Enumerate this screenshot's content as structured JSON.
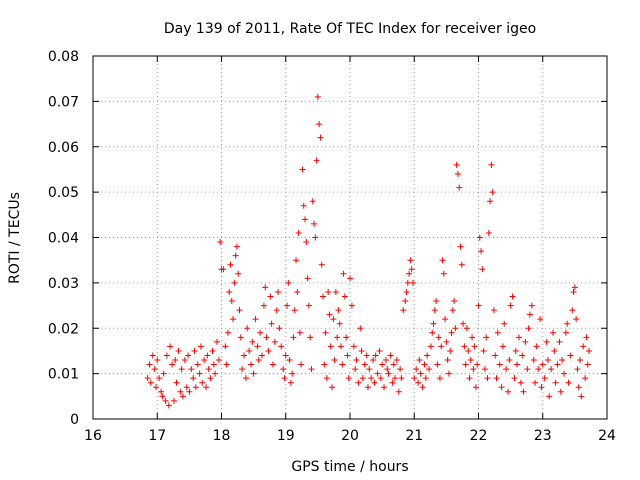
{
  "chart_data": {
    "type": "scatter",
    "title": "Day 139 of 2011, Rate Of TEC Index for receiver igeo",
    "xlabel": "GPS time / hours",
    "ylabel": "ROTI / TECUs",
    "xlim": [
      16,
      24
    ],
    "ylim": [
      0,
      0.08
    ],
    "x_ticks": [
      "16",
      "17",
      "18",
      "19",
      "20",
      "21",
      "22",
      "23",
      "24"
    ],
    "y_ticks": [
      "0",
      "0.01",
      "0.02",
      "0.03",
      "0.04",
      "0.05",
      "0.06",
      "0.07",
      "0.08"
    ],
    "grid": true,
    "marker": "+",
    "series_color": "#ff0000",
    "series": [
      {
        "name": "ROTI",
        "points": [
          [
            16.85,
            0.009
          ],
          [
            16.88,
            0.012
          ],
          [
            16.9,
            0.008
          ],
          [
            16.93,
            0.014
          ],
          [
            16.96,
            0.011
          ],
          [
            16.98,
            0.007
          ],
          [
            17.0,
            0.013
          ],
          [
            17.03,
            0.009
          ],
          [
            17.06,
            0.006
          ],
          [
            17.08,
            0.005
          ],
          [
            17.1,
            0.01
          ],
          [
            17.13,
            0.004
          ],
          [
            17.15,
            0.014
          ],
          [
            17.18,
            0.003
          ],
          [
            17.2,
            0.016
          ],
          [
            17.23,
            0.012
          ],
          [
            17.26,
            0.004
          ],
          [
            17.28,
            0.013
          ],
          [
            17.3,
            0.008
          ],
          [
            17.33,
            0.015
          ],
          [
            17.36,
            0.006
          ],
          [
            17.38,
            0.011
          ],
          [
            17.4,
            0.005
          ],
          [
            17.43,
            0.013
          ],
          [
            17.46,
            0.007
          ],
          [
            17.48,
            0.014
          ],
          [
            17.5,
            0.006
          ],
          [
            17.53,
            0.011
          ],
          [
            17.56,
            0.009
          ],
          [
            17.58,
            0.015
          ],
          [
            17.6,
            0.007
          ],
          [
            17.63,
            0.012
          ],
          [
            17.66,
            0.01
          ],
          [
            17.68,
            0.016
          ],
          [
            17.7,
            0.008
          ],
          [
            17.73,
            0.013
          ],
          [
            17.76,
            0.007
          ],
          [
            17.78,
            0.014
          ],
          [
            17.8,
            0.011
          ],
          [
            17.83,
            0.009
          ],
          [
            17.86,
            0.015
          ],
          [
            17.88,
            0.012
          ],
          [
            17.9,
            0.01
          ],
          [
            17.93,
            0.017
          ],
          [
            17.96,
            0.013
          ],
          [
            17.98,
            0.039
          ],
          [
            18.0,
            0.033
          ],
          [
            18.03,
            0.033
          ],
          [
            18.06,
            0.016
          ],
          [
            18.08,
            0.012
          ],
          [
            18.1,
            0.019
          ],
          [
            18.12,
            0.028
          ],
          [
            18.14,
            0.034
          ],
          [
            18.16,
            0.026
          ],
          [
            18.18,
            0.022
          ],
          [
            18.2,
            0.03
          ],
          [
            18.22,
            0.036
          ],
          [
            18.24,
            0.038
          ],
          [
            18.26,
            0.032
          ],
          [
            18.28,
            0.024
          ],
          [
            18.3,
            0.018
          ],
          [
            18.32,
            0.011
          ],
          [
            18.35,
            0.014
          ],
          [
            18.38,
            0.009
          ],
          [
            18.4,
            0.02
          ],
          [
            18.43,
            0.015
          ],
          [
            18.46,
            0.012
          ],
          [
            18.48,
            0.017
          ],
          [
            18.5,
            0.01
          ],
          [
            18.53,
            0.022
          ],
          [
            18.56,
            0.016
          ],
          [
            18.58,
            0.013
          ],
          [
            18.6,
            0.019
          ],
          [
            18.63,
            0.014
          ],
          [
            18.66,
            0.025
          ],
          [
            18.68,
            0.029
          ],
          [
            18.7,
            0.018
          ],
          [
            18.73,
            0.015
          ],
          [
            18.76,
            0.027
          ],
          [
            18.78,
            0.021
          ],
          [
            18.8,
            0.012
          ],
          [
            18.83,
            0.017
          ],
          [
            18.86,
            0.024
          ],
          [
            18.88,
            0.028
          ],
          [
            18.9,
            0.02
          ],
          [
            18.93,
            0.016
          ],
          [
            18.96,
            0.011
          ],
          [
            18.98,
            0.009
          ],
          [
            19.0,
            0.014
          ],
          [
            19.02,
            0.025
          ],
          [
            19.04,
            0.03
          ],
          [
            19.06,
            0.013
          ],
          [
            19.08,
            0.008
          ],
          [
            19.1,
            0.01
          ],
          [
            19.12,
            0.018
          ],
          [
            19.14,
            0.024
          ],
          [
            19.16,
            0.035
          ],
          [
            19.18,
            0.028
          ],
          [
            19.2,
            0.041
          ],
          [
            19.22,
            0.019
          ],
          [
            19.24,
            0.012
          ],
          [
            19.26,
            0.055
          ],
          [
            19.28,
            0.047
          ],
          [
            19.3,
            0.044
          ],
          [
            19.32,
            0.039
          ],
          [
            19.34,
            0.031
          ],
          [
            19.36,
            0.025
          ],
          [
            19.38,
            0.018
          ],
          [
            19.4,
            0.011
          ],
          [
            19.42,
            0.048
          ],
          [
            19.44,
            0.043
          ],
          [
            19.46,
            0.04
          ],
          [
            19.48,
            0.057
          ],
          [
            19.5,
            0.071
          ],
          [
            19.52,
            0.065
          ],
          [
            19.54,
            0.062
          ],
          [
            19.56,
            0.034
          ],
          [
            19.58,
            0.027
          ],
          [
            19.6,
            0.012
          ],
          [
            19.62,
            0.019
          ],
          [
            19.64,
            0.009
          ],
          [
            19.66,
            0.028
          ],
          [
            19.68,
            0.023
          ],
          [
            19.7,
            0.016
          ],
          [
            19.72,
            0.007
          ],
          [
            19.74,
            0.022
          ],
          [
            19.76,
            0.013
          ],
          [
            19.78,
            0.028
          ],
          [
            19.8,
            0.018
          ],
          [
            19.82,
            0.024
          ],
          [
            19.84,
            0.021
          ],
          [
            19.86,
            0.016
          ],
          [
            19.88,
            0.012
          ],
          [
            19.9,
            0.032
          ],
          [
            19.92,
            0.027
          ],
          [
            19.94,
            0.018
          ],
          [
            19.96,
            0.014
          ],
          [
            19.98,
            0.009
          ],
          [
            20.0,
            0.031
          ],
          [
            20.03,
            0.025
          ],
          [
            20.06,
            0.016
          ],
          [
            20.08,
            0.011
          ],
          [
            20.1,
            0.013
          ],
          [
            20.13,
            0.008
          ],
          [
            20.16,
            0.02
          ],
          [
            20.18,
            0.015
          ],
          [
            20.2,
            0.009
          ],
          [
            20.23,
            0.012
          ],
          [
            20.26,
            0.014
          ],
          [
            20.28,
            0.007
          ],
          [
            20.3,
            0.011
          ],
          [
            20.33,
            0.009
          ],
          [
            20.36,
            0.013
          ],
          [
            20.38,
            0.008
          ],
          [
            20.4,
            0.014
          ],
          [
            20.43,
            0.01
          ],
          [
            20.46,
            0.015
          ],
          [
            20.48,
            0.009
          ],
          [
            20.5,
            0.012
          ],
          [
            20.53,
            0.007
          ],
          [
            20.56,
            0.013
          ],
          [
            20.58,
            0.011
          ],
          [
            20.6,
            0.01
          ],
          [
            20.63,
            0.014
          ],
          [
            20.66,
            0.008
          ],
          [
            20.68,
            0.012
          ],
          [
            20.7,
            0.009
          ],
          [
            20.73,
            0.013
          ],
          [
            20.76,
            0.006
          ],
          [
            20.78,
            0.011
          ],
          [
            20.8,
            0.009
          ],
          [
            20.83,
            0.024
          ],
          [
            20.86,
            0.026
          ],
          [
            20.88,
            0.028
          ],
          [
            20.9,
            0.03
          ],
          [
            20.92,
            0.032
          ],
          [
            20.94,
            0.035
          ],
          [
            20.96,
            0.033
          ],
          [
            20.98,
            0.03
          ],
          [
            21.0,
            0.009
          ],
          [
            21.03,
            0.011
          ],
          [
            21.06,
            0.008
          ],
          [
            21.08,
            0.013
          ],
          [
            21.1,
            0.01
          ],
          [
            21.13,
            0.007
          ],
          [
            21.16,
            0.012
          ],
          [
            21.18,
            0.009
          ],
          [
            21.2,
            0.014
          ],
          [
            21.23,
            0.011
          ],
          [
            21.26,
            0.016
          ],
          [
            21.28,
            0.019
          ],
          [
            21.3,
            0.021
          ],
          [
            21.32,
            0.024
          ],
          [
            21.34,
            0.026
          ],
          [
            21.36,
            0.012
          ],
          [
            21.38,
            0.018
          ],
          [
            21.4,
            0.009
          ],
          [
            21.42,
            0.016
          ],
          [
            21.44,
            0.035
          ],
          [
            21.46,
            0.032
          ],
          [
            21.48,
            0.022
          ],
          [
            21.5,
            0.017
          ],
          [
            21.52,
            0.013
          ],
          [
            21.54,
            0.01
          ],
          [
            21.56,
            0.015
          ],
          [
            21.58,
            0.019
          ],
          [
            21.6,
            0.024
          ],
          [
            21.62,
            0.026
          ],
          [
            21.64,
            0.02
          ],
          [
            21.66,
            0.056
          ],
          [
            21.68,
            0.054
          ],
          [
            21.7,
            0.051
          ],
          [
            21.72,
            0.038
          ],
          [
            21.74,
            0.034
          ],
          [
            21.76,
            0.021
          ],
          [
            21.78,
            0.016
          ],
          [
            21.8,
            0.012
          ],
          [
            21.82,
            0.02
          ],
          [
            21.84,
            0.015
          ],
          [
            21.86,
            0.009
          ],
          [
            21.88,
            0.013
          ],
          [
            21.9,
            0.018
          ],
          [
            21.92,
            0.011
          ],
          [
            21.94,
            0.016
          ],
          [
            21.96,
            0.007
          ],
          [
            21.98,
            0.012
          ],
          [
            22.0,
            0.025
          ],
          [
            22.02,
            0.04
          ],
          [
            22.04,
            0.037
          ],
          [
            22.06,
            0.033
          ],
          [
            22.08,
            0.015
          ],
          [
            22.1,
            0.011
          ],
          [
            22.12,
            0.018
          ],
          [
            22.14,
            0.009
          ],
          [
            22.16,
            0.041
          ],
          [
            22.18,
            0.048
          ],
          [
            22.2,
            0.056
          ],
          [
            22.22,
            0.05
          ],
          [
            22.24,
            0.024
          ],
          [
            22.26,
            0.014
          ],
          [
            22.28,
            0.009
          ],
          [
            22.3,
            0.019
          ],
          [
            22.33,
            0.012
          ],
          [
            22.36,
            0.007
          ],
          [
            22.38,
            0.016
          ],
          [
            22.4,
            0.021
          ],
          [
            22.43,
            0.011
          ],
          [
            22.46,
            0.006
          ],
          [
            22.48,
            0.013
          ],
          [
            22.5,
            0.025
          ],
          [
            22.53,
            0.027
          ],
          [
            22.56,
            0.009
          ],
          [
            22.58,
            0.015
          ],
          [
            22.6,
            0.012
          ],
          [
            22.63,
            0.018
          ],
          [
            22.66,
            0.008
          ],
          [
            22.68,
            0.014
          ],
          [
            22.7,
            0.006
          ],
          [
            22.73,
            0.017
          ],
          [
            22.76,
            0.011
          ],
          [
            22.78,
            0.02
          ],
          [
            22.8,
            0.023
          ],
          [
            22.83,
            0.025
          ],
          [
            22.86,
            0.013
          ],
          [
            22.88,
            0.008
          ],
          [
            22.9,
            0.016
          ],
          [
            22.93,
            0.011
          ],
          [
            22.96,
            0.022
          ],
          [
            22.98,
            0.007
          ],
          [
            23.0,
            0.012
          ],
          [
            23.03,
            0.009
          ],
          [
            23.06,
            0.017
          ],
          [
            23.08,
            0.013
          ],
          [
            23.1,
            0.005
          ],
          [
            23.13,
            0.011
          ],
          [
            23.16,
            0.019
          ],
          [
            23.18,
            0.015
          ],
          [
            23.2,
            0.008
          ],
          [
            23.23,
            0.012
          ],
          [
            23.26,
            0.017
          ],
          [
            23.28,
            0.006
          ],
          [
            23.3,
            0.013
          ],
          [
            23.33,
            0.01
          ],
          [
            23.36,
            0.019
          ],
          [
            23.38,
            0.021
          ],
          [
            23.4,
            0.008
          ],
          [
            23.43,
            0.014
          ],
          [
            23.46,
            0.024
          ],
          [
            23.48,
            0.028
          ],
          [
            23.5,
            0.029
          ],
          [
            23.52,
            0.022
          ],
          [
            23.54,
            0.011
          ],
          [
            23.56,
            0.007
          ],
          [
            23.58,
            0.013
          ],
          [
            23.6,
            0.005
          ],
          [
            23.63,
            0.016
          ],
          [
            23.66,
            0.009
          ],
          [
            23.68,
            0.018
          ],
          [
            23.7,
            0.012
          ],
          [
            23.72,
            0.015
          ]
        ]
      }
    ]
  }
}
